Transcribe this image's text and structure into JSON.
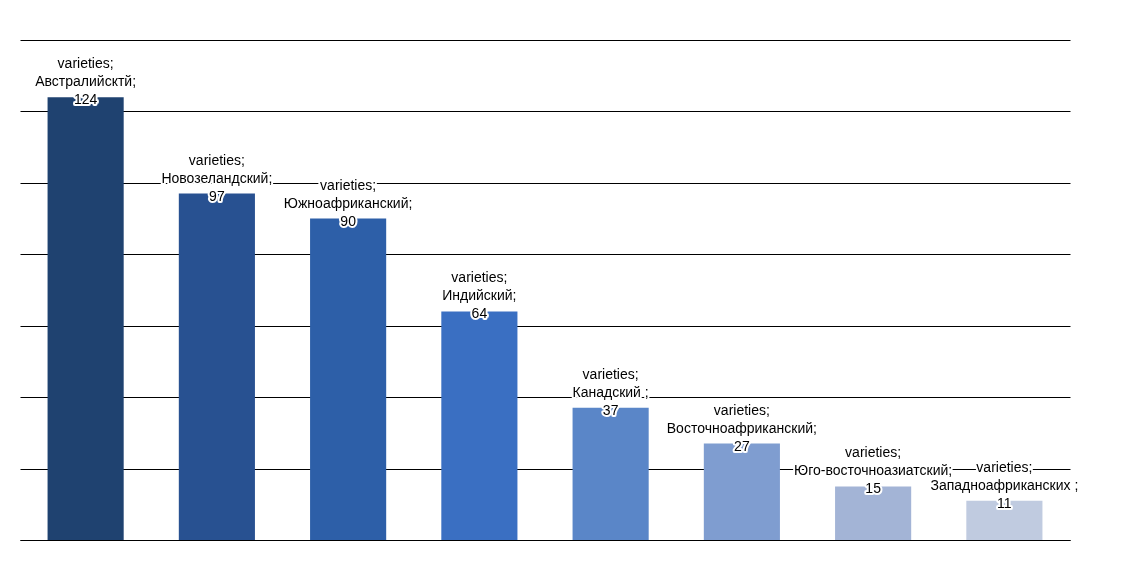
{
  "chart_data": {
    "type": "bar",
    "categories": [
      null,
      null,
      null,
      null,
      null,
      null,
      null,
      null
    ],
    "series": [
      {
        "values": [
          124,
          97,
          90,
          64,
          37,
          27,
          15,
          11
        ],
        "colors": [
          "#1f4270",
          "#285191",
          "#2d5fa8",
          "#3a6fc2",
          "#5a86c8",
          "#7f9dd0",
          "#a3b4d6",
          "#c0cbe0"
        ],
        "value_labels": [
          "varieties; Австралийсктй; 124",
          "varieties; Новозеландский; 97",
          "varieties; Южноафриканский; 90",
          "varieties; Индийский; 64",
          "varieties; Канадский ; 37",
          "varieties; Восточноафриканский; 27",
          "varieties; Юго-восточноазиатский; 15",
          "varieties; Западноафриканских ; 11"
        ]
      }
    ],
    "ylim": [
      0,
      140
    ],
    "yticks": [
      {
        "value": 0,
        "label": null
      },
      {
        "value": 20,
        "label": null
      },
      {
        "value": 40,
        "label": null
      },
      {
        "value": 60,
        "label": null
      },
      {
        "value": 80,
        "label": null
      },
      {
        "value": 100,
        "label": null
      },
      {
        "value": 120,
        "label": null
      },
      {
        "value": 140,
        "label": null
      }
    ],
    "grid": "y",
    "tick_labels": false
  }
}
